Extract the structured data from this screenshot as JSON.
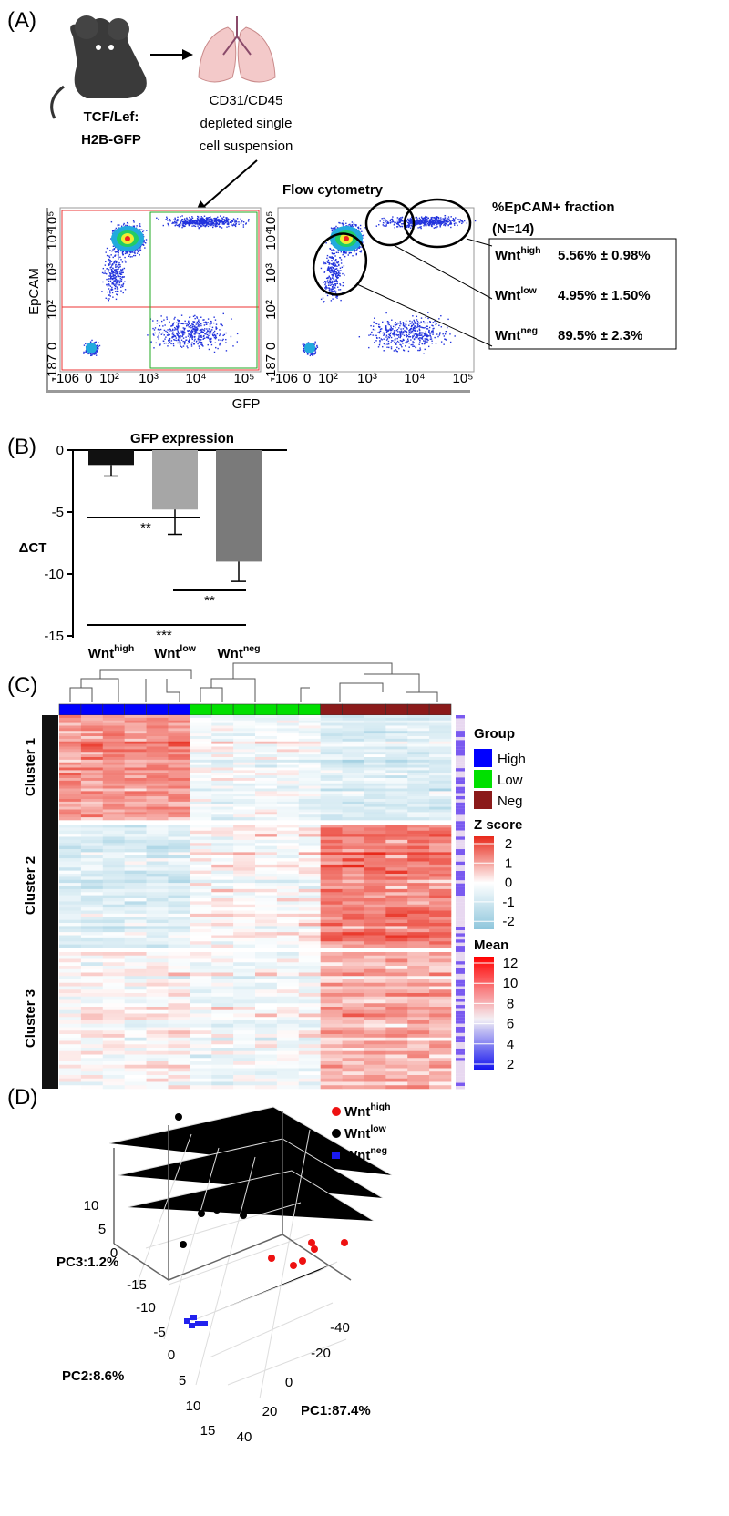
{
  "panel_a": {
    "label": "(A)",
    "mouse_label": [
      "TCF/Lef:",
      "H2B-GFP"
    ],
    "cells_label": [
      "CD31/CD45",
      "depleted single",
      "cell suspension"
    ],
    "method": "Flow cytometry",
    "y_axis": "EpCAM",
    "x_axis": "GFP",
    "yticks": [
      "10⁵",
      "10⁴",
      "10³",
      "10²",
      "0",
      "-187"
    ],
    "xticks": [
      "-106",
      "0",
      "10²",
      "10³",
      "10⁴",
      "10⁵"
    ],
    "fraction_title": [
      "%EpCAM+ fraction",
      "(N=14)"
    ],
    "fractions": [
      {
        "group": {
          "base": "Wnt",
          "sup": "high"
        },
        "value": "5.56% ± 0.98%"
      },
      {
        "group": {
          "base": "Wnt",
          "sup": "low"
        },
        "value": "4.95% ± 1.50%"
      },
      {
        "group": {
          "base": "Wnt",
          "sup": "neg"
        },
        "value": "89.5% ± 2.3%"
      }
    ]
  },
  "panel_b": {
    "label": "(B)",
    "title": "GFP expression",
    "y_axis": "ΔCT",
    "ylim": [
      -15,
      0
    ],
    "yticks": [
      0,
      -5,
      -10,
      -15
    ],
    "categories": [
      {
        "base": "Wnt",
        "sup": "high"
      },
      {
        "base": "Wnt",
        "sup": "low"
      },
      {
        "base": "Wnt",
        "sup": "neg"
      }
    ],
    "values": [
      -1.2,
      -4.8,
      -9.0
    ],
    "errors": [
      0.9,
      2.0,
      1.6
    ],
    "colors": [
      "#111111",
      "#a6a6a6",
      "#7a7a7a"
    ],
    "significance": [
      "**",
      "**",
      "***"
    ]
  },
  "panel_c": {
    "label": "(C)",
    "clusters": [
      "Cluster 1",
      "Cluster 2",
      "Cluster 3"
    ],
    "group_title": "Group",
    "groups": [
      {
        "name": "High",
        "color": "#0000ff"
      },
      {
        "name": "Low",
        "color": "#00e000"
      },
      {
        "name": "Neg",
        "color": "#8b1a1a"
      }
    ],
    "z_title": "Z score",
    "z_ticks": [
      2,
      1,
      0,
      -1,
      -2
    ],
    "mean_title": "Mean",
    "mean_ticks": [
      12,
      10,
      8,
      6,
      4,
      2
    ]
  },
  "panel_d": {
    "label": "(D)",
    "legend": [
      {
        "base": "Wnt",
        "sup": "high",
        "color": "#ee1111"
      },
      {
        "base": "Wnt",
        "sup": "low",
        "color": "#000000"
      },
      {
        "base": "Wnt",
        "sup": "neg",
        "color": "#1a1aee"
      }
    ],
    "pc3_label": "PC3:1.2%",
    "pc2_label": "PC2:8.6%",
    "pc1_label": "PC1:87.4%",
    "pc3_ticks": [
      10,
      5,
      0
    ],
    "pc2_ticks": [
      -15,
      -10,
      -5,
      0,
      5,
      10,
      15
    ],
    "pc1_ticks": [
      -40,
      -20,
      0,
      20,
      40
    ]
  }
}
